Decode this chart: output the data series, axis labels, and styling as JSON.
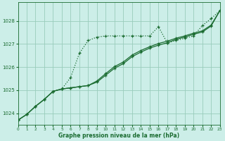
{
  "bg_color": "#cceee8",
  "grid_color": "#99ccbb",
  "line_color": "#1a6b30",
  "xlabel": "Graphe pression niveau de la mer (hPa)",
  "xlim": [
    0,
    23
  ],
  "ylim": [
    1023.5,
    1028.8
  ],
  "yticks": [
    1024,
    1025,
    1026,
    1027,
    1028
  ],
  "xticks": [
    0,
    1,
    2,
    3,
    4,
    5,
    6,
    7,
    8,
    9,
    10,
    11,
    12,
    13,
    14,
    15,
    16,
    17,
    18,
    19,
    20,
    21,
    22,
    23
  ],
  "line1_x": [
    0,
    1,
    2,
    3,
    4,
    5,
    6,
    7,
    8,
    9,
    10,
    11,
    12,
    13,
    14,
    15,
    16,
    17,
    18,
    19,
    20,
    21,
    22,
    23
  ],
  "line1_y": [
    1023.7,
    1023.95,
    1024.3,
    1024.6,
    1024.95,
    1025.05,
    1025.55,
    1026.6,
    1027.15,
    1027.3,
    1027.35,
    1027.35,
    1027.35,
    1027.35,
    1027.35,
    1027.35,
    1027.75,
    1027.05,
    1027.15,
    1027.25,
    1027.35,
    1027.8,
    1028.1,
    1028.45
  ],
  "line2_x": [
    0,
    1,
    2,
    3,
    4,
    5,
    6,
    7,
    8,
    9,
    10,
    11,
    12,
    13,
    14,
    15,
    16,
    17,
    18,
    19,
    20,
    21,
    22,
    23
  ],
  "line2_y": [
    1023.7,
    1023.95,
    1024.3,
    1024.6,
    1024.95,
    1025.05,
    1025.1,
    1025.15,
    1025.2,
    1025.35,
    1025.65,
    1025.95,
    1026.15,
    1026.45,
    1026.65,
    1026.82,
    1026.95,
    1027.05,
    1027.2,
    1027.3,
    1027.42,
    1027.52,
    1027.78,
    1028.45
  ],
  "line3_x": [
    0,
    1,
    2,
    3,
    4,
    5,
    6,
    7,
    8,
    9,
    10,
    11,
    12,
    13,
    14,
    15,
    16,
    17,
    18,
    19,
    20,
    21,
    22,
    23
  ],
  "line3_y": [
    1023.7,
    1023.95,
    1024.3,
    1024.6,
    1024.95,
    1025.05,
    1025.1,
    1025.15,
    1025.2,
    1025.4,
    1025.72,
    1026.02,
    1026.22,
    1026.52,
    1026.72,
    1026.88,
    1027.02,
    1027.12,
    1027.25,
    1027.35,
    1027.47,
    1027.57,
    1027.82,
    1028.45
  ]
}
